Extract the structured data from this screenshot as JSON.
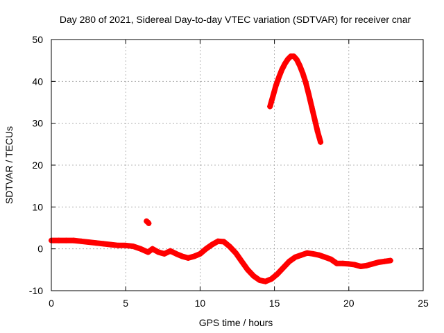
{
  "chart_data": {
    "type": "scatter",
    "title": "Day 280 of 2021, Sidereal Day-to-day VTEC variation (SDTVAR) for receiver cnar",
    "xlabel": "GPS time / hours",
    "ylabel": "SDTVAR / TECUs",
    "xlim": [
      0,
      25
    ],
    "ylim": [
      -10,
      50
    ],
    "xticks": [
      "0",
      "5",
      "10",
      "15",
      "20",
      "25"
    ],
    "yticks": [
      "-10",
      "0",
      "10",
      "20",
      "30",
      "40",
      "50"
    ],
    "grid": true,
    "marker": "+",
    "series": [
      {
        "name": "main",
        "color": "#ff0000",
        "x": [
          0.0,
          0.5,
          1.0,
          1.5,
          2.0,
          2.5,
          3.0,
          3.5,
          4.0,
          4.5,
          5.0,
          5.5,
          6.0,
          6.5,
          6.8,
          7.2,
          7.6,
          8.0,
          8.4,
          8.8,
          9.2,
          9.6,
          10.0,
          10.4,
          10.8,
          11.2,
          11.6,
          12.0,
          12.4,
          12.8,
          13.2,
          13.6,
          14.0,
          14.4,
          14.8,
          15.2,
          15.6,
          16.0,
          16.4,
          16.8,
          17.2,
          17.6,
          18.0,
          18.4,
          18.8,
          19.2,
          19.6,
          20.0,
          20.4,
          20.8,
          21.2,
          21.6,
          22.0,
          22.4,
          22.8
        ],
        "y": [
          2.0,
          2.0,
          2.0,
          2.0,
          1.8,
          1.6,
          1.4,
          1.2,
          1.0,
          0.8,
          0.8,
          0.6,
          0.0,
          -0.8,
          0.0,
          -0.8,
          -1.2,
          -0.5,
          -1.2,
          -1.8,
          -2.2,
          -1.8,
          -1.2,
          0.0,
          1.0,
          1.8,
          1.7,
          0.5,
          -1.0,
          -3.0,
          -5.0,
          -6.5,
          -7.5,
          -7.8,
          -7.2,
          -6.0,
          -4.5,
          -3.0,
          -2.0,
          -1.5,
          -1.0,
          -1.2,
          -1.5,
          -2.0,
          -2.5,
          -3.5,
          -3.5,
          -3.6,
          -3.8,
          -4.2,
          -4.0,
          -3.6,
          -3.2,
          -3.0,
          -2.8
        ]
      },
      {
        "name": "isolated",
        "color": "#ff0000",
        "x": [
          6.4,
          6.5,
          6.55
        ],
        "y": [
          6.6,
          6.3,
          6.1
        ]
      },
      {
        "name": "arc",
        "color": "#ff0000",
        "x": [
          14.7,
          14.9,
          15.1,
          15.3,
          15.5,
          15.7,
          15.9,
          16.1,
          16.3,
          16.5,
          16.7,
          16.9,
          17.1,
          17.3,
          17.5,
          17.7,
          17.9,
          18.1
        ],
        "y": [
          34.0,
          36.5,
          39.0,
          41.0,
          42.8,
          44.2,
          45.3,
          46.0,
          46.0,
          45.2,
          43.8,
          42.0,
          39.8,
          37.0,
          34.0,
          31.0,
          28.0,
          25.5
        ]
      }
    ]
  }
}
